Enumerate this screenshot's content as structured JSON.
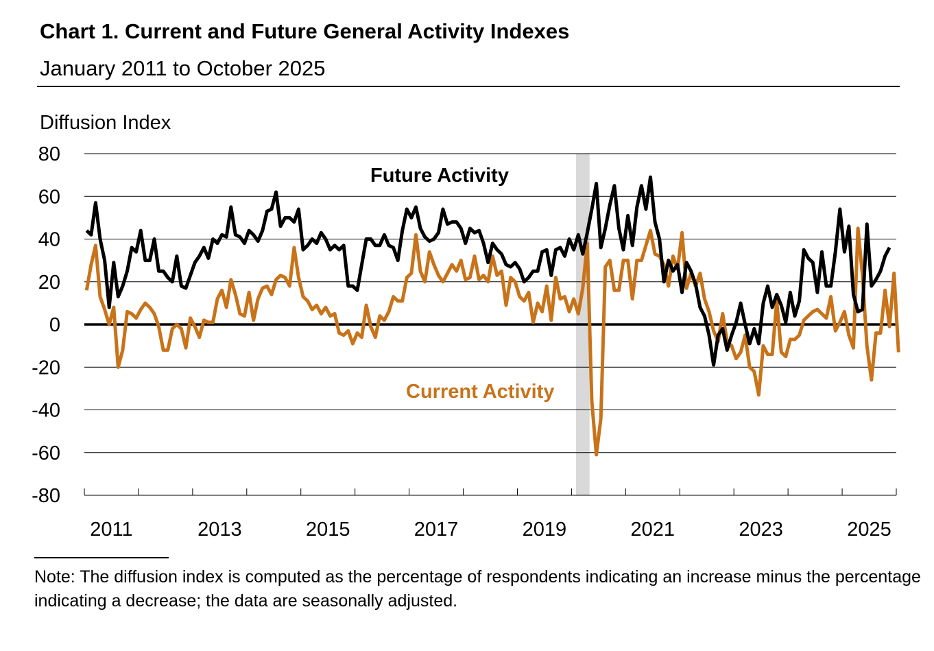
{
  "header": {
    "title": "Chart 1. Current and Future General Activity Indexes",
    "subtitle": "January 2011 to October 2025"
  },
  "note": "Note: The diffusion index is computed as the percentage of respondents indicating an increase minus the percentage indicating a decrease; the data are seasonally adjusted.",
  "colors": {
    "future": "#000000",
    "current": "#C8731A",
    "recession": "#D9D9D9",
    "grid": "#000000"
  },
  "chart_data": {
    "type": "line",
    "ylabel": "Diffusion Index",
    "ylim": [
      -80,
      80
    ],
    "yticks": [
      80,
      60,
      40,
      20,
      0,
      -20,
      -40,
      -60,
      -80
    ],
    "xticks": [
      "2011",
      "2013",
      "2015",
      "2017",
      "2019",
      "2021",
      "2023",
      "2025"
    ],
    "x_start": "2011-01",
    "x_end": "2025-10",
    "grid": true,
    "shaded_period": {
      "start": "2020-02",
      "end": "2020-04"
    },
    "series": [
      {
        "name": "Future Activity",
        "values": [
          44,
          42,
          57,
          40,
          30,
          8,
          29,
          13,
          18,
          25,
          36,
          34,
          44,
          30,
          30,
          40,
          25,
          25,
          22,
          20,
          32,
          18,
          17,
          23,
          29,
          32,
          36,
          31,
          40,
          38,
          42,
          41,
          55,
          42,
          41,
          38,
          44,
          42,
          39,
          44,
          53,
          54,
          62,
          46,
          50,
          50,
          48,
          54,
          35,
          37,
          40,
          38,
          43,
          40,
          35,
          37,
          35,
          37,
          18,
          18,
          16,
          28,
          40,
          40,
          37,
          37,
          42,
          37,
          36,
          30,
          44,
          54,
          50,
          55,
          45,
          41,
          39,
          40,
          43,
          54,
          47,
          48,
          48,
          45,
          38,
          45,
          43,
          44,
          38,
          29,
          38,
          35,
          33,
          28,
          27,
          29,
          26,
          20,
          22,
          25,
          25,
          34,
          35,
          23,
          35,
          36,
          32,
          40,
          35,
          42,
          33,
          43,
          54,
          66,
          36,
          45,
          56,
          65,
          45,
          35,
          51,
          37,
          55,
          65,
          54,
          69,
          48,
          40,
          20,
          30,
          25,
          28,
          15,
          29,
          25,
          19,
          8,
          4,
          -5,
          -19,
          -5,
          -2,
          -12,
          -5,
          1,
          10,
          0,
          -9,
          -2,
          -9,
          10,
          18,
          8,
          14,
          9,
          1,
          15,
          4,
          11,
          35,
          31,
          29,
          15,
          34,
          18,
          18,
          34,
          54,
          34,
          46,
          14,
          6,
          7,
          47,
          18,
          21,
          25,
          32,
          36
        ]
      },
      {
        "name": "Current Activity",
        "values": [
          16,
          28,
          37,
          13,
          7,
          0,
          8,
          -20,
          -12,
          6,
          5,
          3,
          7,
          10,
          8,
          5,
          -1,
          -12,
          -12,
          -2,
          0,
          -2,
          -11,
          3,
          -1,
          -6,
          2,
          1,
          1,
          12,
          16,
          8,
          21,
          14,
          5,
          4,
          15,
          2,
          12,
          17,
          18,
          14,
          21,
          23,
          22,
          18,
          36,
          22,
          13,
          11,
          7,
          9,
          5,
          8,
          4,
          5,
          -4,
          -5,
          -3,
          -9,
          -4,
          -6,
          9,
          -1,
          -6,
          4,
          2,
          6,
          13,
          11,
          11,
          22,
          24,
          42,
          25,
          20,
          34,
          28,
          23,
          20,
          24,
          28,
          25,
          30,
          21,
          22,
          32,
          21,
          23,
          20,
          32,
          23,
          25,
          9,
          22,
          20,
          13,
          11,
          15,
          1,
          10,
          6,
          18,
          2,
          22,
          12,
          13,
          6,
          12,
          5,
          17,
          38,
          -36,
          -61,
          -44,
          27,
          30,
          16,
          16,
          30,
          30,
          12,
          30,
          30,
          37,
          44,
          33,
          32,
          28,
          18,
          32,
          26,
          43,
          17,
          24,
          18,
          24,
          12,
          6,
          -3,
          -8,
          5,
          -8,
          -10,
          -16,
          -13,
          -5,
          -20,
          -22,
          -33,
          -10,
          -14,
          -14,
          11,
          -13,
          -15,
          -7,
          -7,
          -5,
          2,
          4,
          6,
          7,
          5,
          3,
          13,
          -3,
          1,
          6,
          -5,
          -11,
          45,
          23,
          -10,
          -26,
          -4,
          -4,
          16,
          -1,
          24,
          -13
        ]
      }
    ],
    "labels": {
      "future": "Future Activity",
      "current": "Current Activity"
    }
  }
}
